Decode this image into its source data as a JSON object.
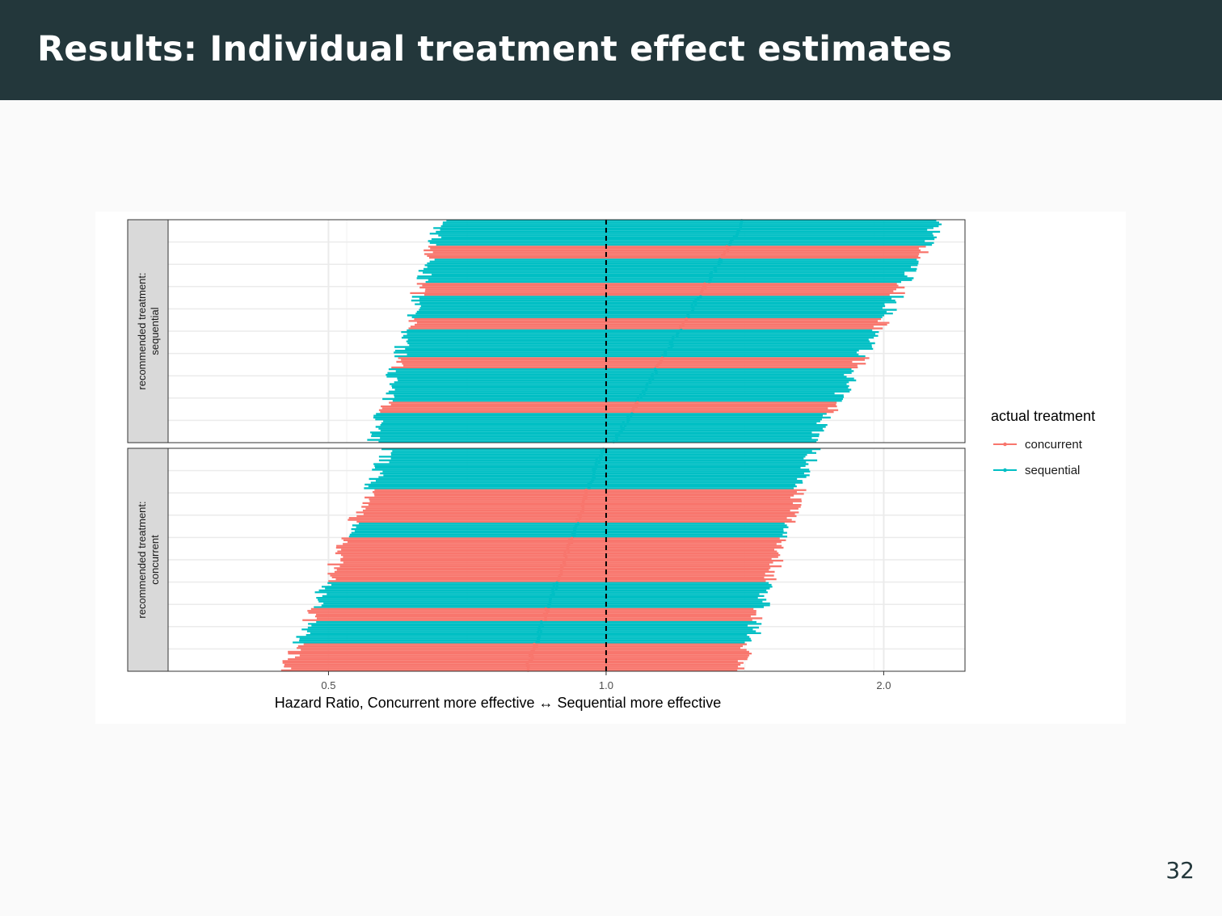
{
  "slide": {
    "title": "Results: Individual treatment effect estimates",
    "page_number": "32"
  },
  "colors": {
    "concurrent": "#f8766d",
    "sequential": "#00bfc4",
    "title_bar": "#23373b",
    "strip_fill": "#d9d9d9"
  },
  "chart_data": {
    "type": "forest",
    "x_scale": "log",
    "xlim": [
      0.335,
      2.45
    ],
    "x_ticks": [
      "0.5",
      "1.0",
      "2.0"
    ],
    "xlabel": "Hazard Ratio, Concurrent more effective ↔ Sequential more effective",
    "reference_line": 1.0,
    "legend_title": "actual treatment",
    "legend_position": "right",
    "legend_entries": [
      "concurrent",
      "sequential"
    ],
    "panels": [
      {
        "label_line1": "recommended treatment:",
        "label_line2": "sequential",
        "rows": 120,
        "estimate_range": [
          1.41,
          1.02
        ],
        "lower_range": [
          0.66,
          0.56
        ],
        "upper_range": [
          2.3,
          1.68
        ],
        "segments": [
          {
            "from": 0.0,
            "to": 0.11,
            "treatment": "sequential"
          },
          {
            "from": 0.11,
            "to": 0.17,
            "treatment": "concurrent"
          },
          {
            "from": 0.17,
            "to": 0.28,
            "treatment": "sequential"
          },
          {
            "from": 0.28,
            "to": 0.34,
            "treatment": "concurrent"
          },
          {
            "from": 0.34,
            "to": 0.44,
            "treatment": "sequential"
          },
          {
            "from": 0.44,
            "to": 0.49,
            "treatment": "concurrent"
          },
          {
            "from": 0.49,
            "to": 0.62,
            "treatment": "sequential"
          },
          {
            "from": 0.62,
            "to": 0.67,
            "treatment": "concurrent"
          },
          {
            "from": 0.67,
            "to": 0.82,
            "treatment": "sequential"
          },
          {
            "from": 0.82,
            "to": 0.87,
            "treatment": "concurrent"
          },
          {
            "from": 0.87,
            "to": 1.0,
            "treatment": "sequential"
          }
        ]
      },
      {
        "label_line1": "recommended treatment:",
        "label_line2": "concurrent",
        "rows": 120,
        "estimate_range": [
          0.99,
          0.82
        ],
        "lower_range": [
          0.58,
          0.45
        ],
        "upper_range": [
          1.68,
          1.4
        ],
        "segments": [
          {
            "from": 0.0,
            "to": 0.18,
            "treatment": "sequential"
          },
          {
            "from": 0.18,
            "to": 0.33,
            "treatment": "concurrent"
          },
          {
            "from": 0.33,
            "to": 0.4,
            "treatment": "sequential"
          },
          {
            "from": 0.4,
            "to": 0.6,
            "treatment": "concurrent"
          },
          {
            "from": 0.6,
            "to": 0.72,
            "treatment": "sequential"
          },
          {
            "from": 0.72,
            "to": 0.78,
            "treatment": "concurrent"
          },
          {
            "from": 0.78,
            "to": 0.88,
            "treatment": "sequential"
          },
          {
            "from": 0.88,
            "to": 1.0,
            "treatment": "concurrent"
          }
        ]
      }
    ]
  }
}
